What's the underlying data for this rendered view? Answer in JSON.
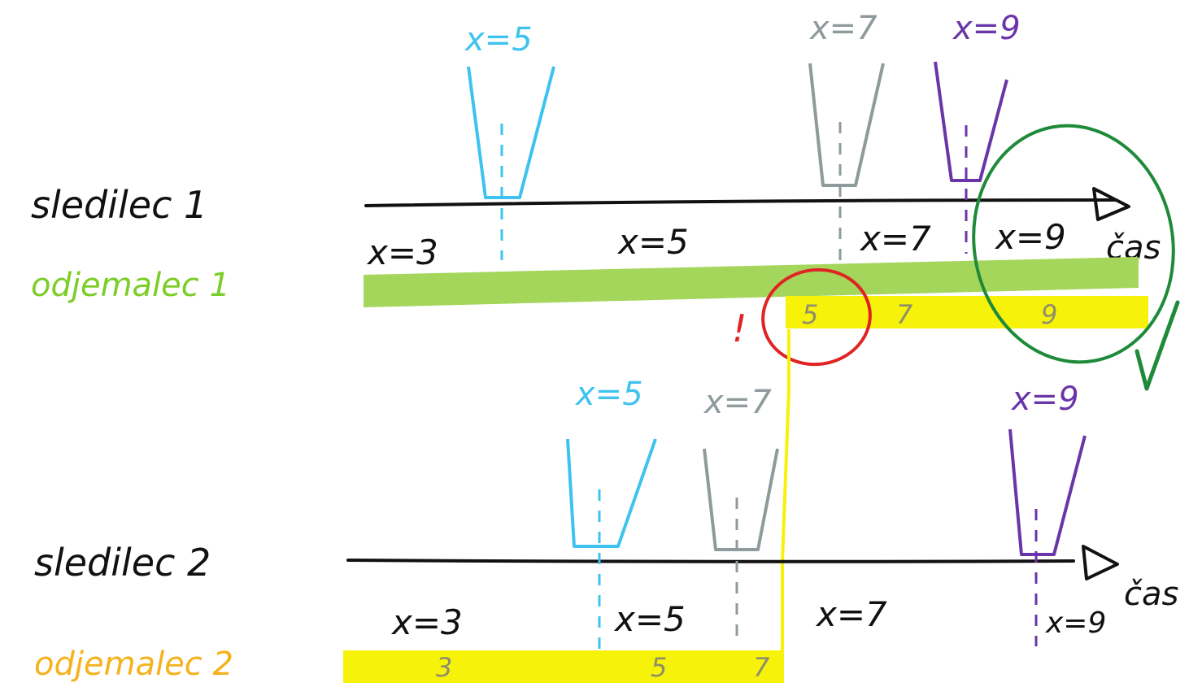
{
  "colors": {
    "ink": "#111111",
    "subscriber_1": "#7ccd28",
    "subscriber_2": "#f5b21c",
    "yellow_bar": "#f6f20a",
    "green_bar": "#a3d65a",
    "blue": "#3ec3ef",
    "gray": "#8e9a9c",
    "purple": "#6a35a8",
    "red": "#e02424",
    "dark_green": "#1f8a3a"
  },
  "icons": {
    "cup": "drop-trapezoid",
    "check": "checkmark-icon",
    "alert": "exclamation-mark"
  },
  "timeline1": {
    "observer_label": "sledilec 1",
    "subscriber_label": "odjemalec 1",
    "axis_label": "čas",
    "events": [
      {
        "label": "x=5",
        "color": "blue"
      },
      {
        "label": "x=7",
        "color": "gray"
      },
      {
        "label": "x=9",
        "color": "purple"
      }
    ],
    "segments": [
      "x=3",
      "x=5",
      "x=7",
      "x=9"
    ],
    "delivered_values": [
      "5",
      "7",
      "9"
    ],
    "alert_mark": "!"
  },
  "timeline2": {
    "observer_label": "sledilec 2",
    "subscriber_label": "odjemalec 2",
    "axis_label": "čas",
    "events": [
      {
        "label": "x=5",
        "color": "blue"
      },
      {
        "label": "x=7",
        "color": "gray"
      },
      {
        "label": "x=9",
        "color": "purple"
      }
    ],
    "segments": [
      "x=3",
      "x=5",
      "x=7",
      "x=9"
    ],
    "delivered_values": [
      "3",
      "5",
      "7"
    ]
  }
}
